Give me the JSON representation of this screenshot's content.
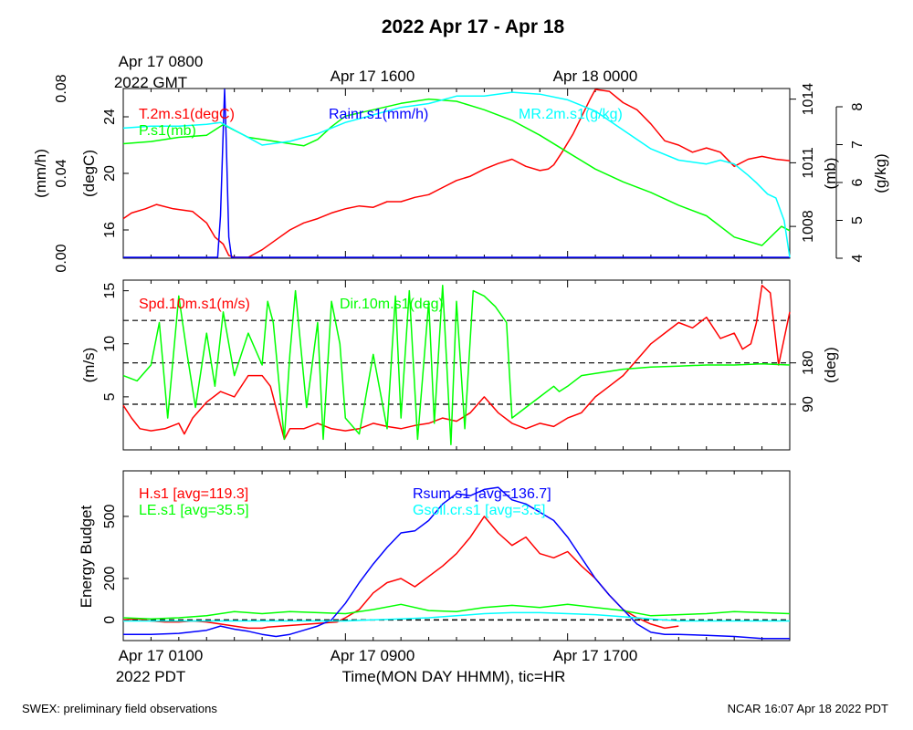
{
  "title": "2022 Apr 17 - Apr 18",
  "top_time_labels": [
    "Apr 17 0800",
    "2022 GMT",
    "Apr 17 1600",
    "Apr 18 0000"
  ],
  "bottom_time_labels": [
    "Apr 17 0100",
    "2022 PDT",
    "Apr 17 0900",
    "Apr 17 1700"
  ],
  "xlabel": "Time(MON DAY HHMM), tic=HR",
  "footer_left": "SWEX: preliminary field observations",
  "footer_right": "NCAR 16:07 Apr 18 2022 PDT",
  "colors": {
    "red": "#ff0000",
    "green": "#00ff00",
    "blue": "#0000ff",
    "cyan": "#00ffff",
    "black": "#000000"
  },
  "chart_data": [
    {
      "type": "line",
      "panel": "met",
      "x_hours_pdt_start": 0,
      "x_range_hours": [
        0,
        24
      ],
      "axes": {
        "rain": {
          "label": "(mm/h)",
          "ylim": [
            0,
            0.08
          ],
          "ticks": [
            "0.00",
            "0.04",
            "0.08"
          ]
        },
        "temp": {
          "label": "(degC)",
          "ylim": [
            14,
            26
          ],
          "ticks": [
            "16",
            "20",
            "24"
          ]
        },
        "pres": {
          "label": "(mb)",
          "ylim": [
            1006.5,
            1014.5
          ],
          "ticks": [
            "1008",
            "1011",
            "1014"
          ]
        },
        "mr": {
          "label": "(g/kg)",
          "ylim": [
            4,
            8.5
          ],
          "ticks": [
            "4",
            "5",
            "6",
            "7",
            "8"
          ]
        }
      },
      "series": [
        {
          "name": "T.2m.s1(degC)",
          "axis": "temp",
          "color": "red",
          "x": [
            0,
            0.3,
            0.8,
            1.2,
            1.8,
            2.5,
            3.0,
            3.3,
            3.6,
            3.8,
            4.0,
            4.5,
            5.0,
            5.5,
            6.0,
            6.5,
            7.0,
            7.5,
            8.0,
            8.5,
            9.0,
            9.5,
            10.0,
            10.5,
            11.0,
            11.5,
            12.0,
            12.5,
            13.0,
            13.5,
            14.0,
            14.5,
            15.0,
            15.3,
            15.5,
            15.8,
            16.2,
            16.5,
            16.8,
            17.0,
            17.5,
            18.0,
            18.5,
            19.0,
            19.5,
            20.0,
            20.5,
            21.0,
            21.5,
            22.0,
            22.5,
            23.0,
            23.5,
            24.0
          ],
          "values": [
            16.8,
            17.2,
            17.5,
            17.8,
            17.5,
            17.3,
            16.5,
            15.5,
            15.0,
            14.2,
            14.0,
            14.0,
            14.6,
            15.3,
            16.0,
            16.5,
            16.8,
            17.2,
            17.5,
            17.7,
            17.6,
            18.0,
            18.0,
            18.3,
            18.5,
            19.0,
            19.5,
            19.8,
            20.3,
            20.7,
            21.0,
            20.5,
            20.2,
            20.3,
            20.6,
            21.5,
            22.8,
            24.0,
            25.2,
            26.0,
            25.8,
            25.0,
            24.5,
            23.5,
            22.3,
            22.0,
            21.5,
            21.8,
            21.5,
            20.5,
            21.0,
            21.2,
            21.0,
            20.9
          ]
        },
        {
          "name": "Rainr.s1(mm/h)",
          "axis": "rain",
          "color": "blue",
          "x": [
            0,
            3.4,
            3.5,
            3.6,
            3.65,
            3.7,
            3.8,
            3.9,
            24.0
          ],
          "values": [
            0,
            0,
            0.02,
            0.06,
            0.08,
            0.06,
            0.01,
            0,
            0
          ]
        },
        {
          "name": "P.s1(mb)",
          "axis": "pres",
          "color": "green",
          "x": [
            0,
            1,
            2,
            3,
            3.6,
            4.5,
            5.5,
            6.5,
            7.0,
            7.5,
            8.0,
            9.0,
            10.0,
            11.0,
            12.0,
            13.0,
            14.0,
            15.0,
            16.0,
            17.0,
            18.0,
            19.0,
            20.0,
            21.0,
            22.0,
            23.0,
            23.7,
            24.0
          ],
          "values": [
            1011.9,
            1012.0,
            1012.2,
            1012.3,
            1012.8,
            1012.2,
            1012.0,
            1011.8,
            1012.1,
            1012.7,
            1013.2,
            1013.5,
            1013.8,
            1014.0,
            1013.9,
            1013.5,
            1013.0,
            1012.3,
            1011.5,
            1010.7,
            1010.1,
            1009.6,
            1009.0,
            1008.5,
            1007.5,
            1007.1,
            1008.0,
            1007.8
          ]
        },
        {
          "name": "MR.2m.s1(g/kg)",
          "axis": "mr",
          "color": "cyan",
          "x": [
            0,
            1,
            2,
            3,
            3.5,
            4.0,
            4.5,
            5.0,
            6.0,
            7.0,
            8.0,
            9.0,
            10.0,
            11.0,
            12.0,
            13.0,
            14.0,
            15.0,
            16.0,
            17.0,
            18.0,
            19.0,
            20.0,
            21.0,
            21.5,
            22.0,
            22.5,
            22.8,
            23.2,
            23.5,
            23.8,
            24.0
          ],
          "values": [
            7.45,
            7.5,
            7.5,
            7.55,
            7.6,
            7.4,
            7.2,
            7.0,
            7.1,
            7.3,
            7.6,
            7.8,
            8.0,
            8.1,
            8.3,
            8.3,
            8.4,
            8.35,
            8.2,
            7.9,
            7.4,
            6.9,
            6.6,
            6.5,
            6.6,
            6.5,
            6.2,
            6.0,
            5.7,
            5.6,
            5.0,
            4.0
          ]
        }
      ]
    },
    {
      "type": "line",
      "panel": "wind",
      "x_range_hours": [
        0,
        24
      ],
      "axes": {
        "spd": {
          "label": "(m/s)",
          "ylim": [
            0,
            16
          ],
          "ticks": [
            "5",
            "10",
            "15"
          ]
        },
        "dir": {
          "label": "(deg)",
          "ticks": [
            "90",
            "180"
          ]
        }
      },
      "reference_lines_spd": [
        4.3,
        8.2,
        12.2
      ],
      "series": [
        {
          "name": "Spd.10m.s1(m/s)",
          "axis": "spd",
          "color": "red",
          "x": [
            0,
            0.3,
            0.6,
            1.0,
            1.5,
            2.0,
            2.2,
            2.5,
            3.0,
            3.5,
            4.0,
            4.5,
            5.0,
            5.3,
            5.6,
            5.8,
            6.0,
            6.5,
            7.0,
            7.5,
            8.0,
            8.5,
            9.0,
            9.5,
            10.0,
            10.5,
            11.0,
            11.5,
            12.0,
            12.5,
            13.0,
            13.5,
            14.0,
            14.5,
            15.0,
            15.5,
            16.0,
            16.5,
            17.0,
            17.5,
            18.0,
            18.5,
            19.0,
            19.5,
            20.0,
            20.5,
            21.0,
            21.5,
            22.0,
            22.3,
            22.6,
            22.8,
            23.0,
            23.3,
            23.6,
            24.0
          ],
          "values": [
            4.2,
            3.0,
            2.0,
            1.8,
            2.0,
            2.5,
            1.5,
            3.0,
            4.5,
            5.5,
            5.0,
            7.0,
            7.0,
            6.0,
            3.0,
            1.0,
            2.0,
            2.0,
            2.5,
            2.0,
            1.8,
            2.0,
            2.5,
            2.2,
            2.0,
            2.3,
            2.5,
            3.0,
            2.7,
            3.5,
            5.0,
            3.5,
            2.5,
            2.0,
            2.5,
            2.2,
            3.0,
            3.5,
            5.0,
            6.0,
            7.0,
            8.5,
            10.0,
            11.0,
            12.0,
            11.5,
            12.5,
            10.5,
            11.0,
            9.5,
            10.0,
            12.0,
            15.5,
            14.8,
            8.0,
            13.0
          ]
        },
        {
          "name": "Dir.10m.s1(deg)",
          "axis": "spd",
          "color": "green",
          "x": [
            0,
            0.5,
            1.0,
            1.3,
            1.6,
            2.0,
            2.3,
            2.6,
            3.0,
            3.3,
            3.6,
            4.0,
            4.5,
            5.0,
            5.2,
            5.4,
            5.8,
            6.0,
            6.2,
            6.6,
            7.0,
            7.2,
            7.5,
            7.8,
            8.0,
            8.5,
            9.0,
            9.5,
            9.8,
            10.0,
            10.3,
            10.6,
            11.0,
            11.2,
            11.5,
            11.8,
            12.0,
            12.3,
            12.6,
            13.0,
            13.4,
            13.8,
            14.0,
            14.5,
            15.0,
            15.5,
            15.7,
            16.0,
            16.5,
            17.0,
            17.5,
            18.0,
            19.0,
            20.0,
            21.0,
            22.0,
            23.0,
            24.0
          ],
          "values": [
            7.0,
            6.5,
            8.0,
            12.0,
            3.0,
            14.5,
            9.0,
            4.0,
            11.0,
            6.0,
            13.0,
            7.0,
            11.0,
            8.0,
            14.0,
            12.0,
            1.0,
            9.0,
            15.0,
            4.0,
            12.0,
            1.0,
            14.0,
            10.0,
            3.0,
            1.5,
            9.0,
            2.0,
            14.5,
            3.0,
            15.0,
            1.0,
            14.0,
            2.5,
            15.5,
            0.5,
            14.0,
            2.0,
            15.0,
            14.5,
            13.5,
            12.0,
            3.0,
            4.0,
            5.0,
            6.0,
            5.5,
            6.0,
            7.0,
            7.2,
            7.4,
            7.6,
            7.8,
            7.9,
            8.0,
            8.0,
            8.1,
            8.0
          ]
        }
      ]
    },
    {
      "type": "line",
      "panel": "energy",
      "x_range_hours": [
        0,
        24
      ],
      "ylabel": "Energy Budget",
      "ylim": [
        -100,
        720
      ],
      "yticks": [
        "0",
        "200",
        "500"
      ],
      "zero_line": 0,
      "series": [
        {
          "name": "H.s1 [avg=119.3]",
          "color": "red",
          "x": [
            0,
            0.5,
            1.0,
            1.5,
            2.0,
            2.5,
            3.0,
            3.5,
            4.0,
            4.5,
            5.0,
            5.2,
            7.7,
            8.0,
            8.5,
            9.0,
            9.5,
            10.0,
            10.5,
            11.0,
            11.5,
            12.0,
            12.5,
            13.0,
            13.5,
            14.0,
            14.5,
            15.0,
            15.5,
            16.0,
            16.5,
            17.0,
            17.5,
            18.0,
            18.5,
            19.0,
            19.5,
            20.0
          ],
          "values": [
            0,
            5,
            -5,
            -10,
            -10,
            -5,
            -10,
            -20,
            -30,
            -40,
            -40,
            -35,
            -10,
            10,
            50,
            130,
            180,
            200,
            160,
            210,
            260,
            320,
            400,
            500,
            420,
            360,
            400,
            320,
            300,
            330,
            260,
            200,
            120,
            50,
            10,
            -20,
            -40,
            -30
          ]
        },
        {
          "name": "LE.s1 [avg=35.5]",
          "color": "green",
          "x": [
            0,
            1,
            2,
            3,
            4,
            5,
            6,
            7,
            8,
            9,
            10,
            11,
            12,
            13,
            14,
            15,
            16,
            17,
            18,
            19,
            20,
            21,
            22,
            23,
            24
          ],
          "values": [
            10,
            5,
            10,
            20,
            40,
            30,
            40,
            35,
            30,
            50,
            75,
            45,
            40,
            60,
            70,
            60,
            75,
            60,
            45,
            20,
            25,
            30,
            40,
            35,
            30
          ]
        },
        {
          "name": "Rsum.s1 [avg=136.7]",
          "color": "blue",
          "x": [
            0,
            1,
            2,
            3,
            3.5,
            4.0,
            4.5,
            5.0,
            5.5,
            6.0,
            6.5,
            7.0,
            7.5,
            8.0,
            8.5,
            9.0,
            9.5,
            10.0,
            10.5,
            11.0,
            11.5,
            12.0,
            12.5,
            13.0,
            13.5,
            14.0,
            14.5,
            15.0,
            15.5,
            16.0,
            16.5,
            17.0,
            17.5,
            18.0,
            18.5,
            19.0,
            19.5,
            20.0,
            21.0,
            22.0,
            23.0,
            24.0
          ],
          "values": [
            -70,
            -70,
            -65,
            -50,
            -30,
            -45,
            -55,
            -70,
            -80,
            -70,
            -50,
            -30,
            0,
            80,
            180,
            270,
            350,
            420,
            430,
            480,
            560,
            610,
            600,
            630,
            640,
            580,
            560,
            520,
            480,
            400,
            300,
            200,
            120,
            50,
            -20,
            -60,
            -70,
            -70,
            -75,
            -80,
            -90,
            -90
          ]
        },
        {
          "name": "Gsoil.cr.s1 [avg=3.5]",
          "color": "cyan",
          "x": [
            0,
            4,
            8,
            9,
            10,
            11,
            12,
            13,
            14,
            15,
            16,
            17,
            18,
            19,
            20,
            24
          ],
          "values": [
            -5,
            -5,
            -5,
            0,
            5,
            10,
            20,
            30,
            35,
            35,
            30,
            25,
            15,
            5,
            -5,
            -5
          ]
        }
      ]
    }
  ]
}
